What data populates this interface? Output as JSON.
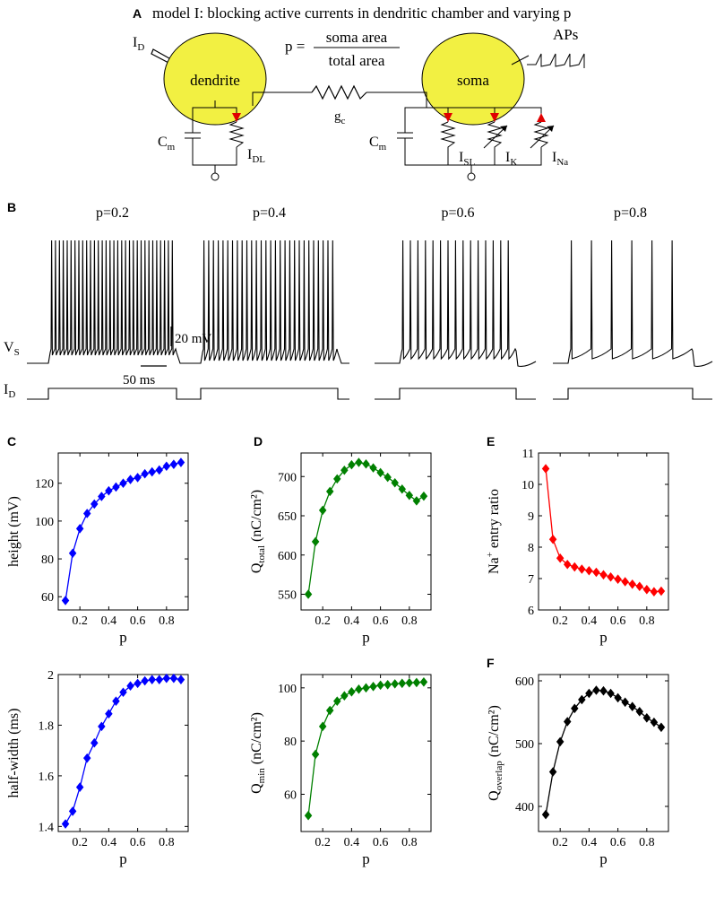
{
  "panels": {
    "A": {
      "letter": "A",
      "title": "model I: blocking active currents in dendritic chamber and varying p",
      "dendrite_label": "dendrite",
      "soma_label": "soma",
      "injection_label": "I",
      "injection_sub": "D",
      "p_lhs": "p =",
      "p_numerator": "soma area",
      "p_denominator": "total area",
      "aps_label": "APs",
      "gc_label": "g",
      "gc_sub": "c",
      "cm_label_d": "C",
      "cm_sub_d": "m",
      "cm_label_s": "C",
      "cm_sub_s": "m",
      "idl_label": "I",
      "idl_sub": "DL",
      "isl_label": "I",
      "isl_sub": "SL",
      "ik_label": "I",
      "ik_sub": "K",
      "ina_label": "I",
      "ina_sub": "Na"
    },
    "B": {
      "letter": "B",
      "traces": [
        {
          "label": "p=0.2",
          "n_spikes": 32
        },
        {
          "label": "p=0.4",
          "n_spikes": 28
        },
        {
          "label": "p=0.6",
          "n_spikes": 15
        },
        {
          "label": "p=0.8",
          "n_spikes": 6
        }
      ],
      "vs_label": "V",
      "vs_sub": "S",
      "id_label": "I",
      "id_sub": "D",
      "scale_v": "20 mV",
      "scale_t": "50 ms"
    }
  },
  "colors": {
    "blue": "#0000ff",
    "green": "#008000",
    "red": "#ff0000",
    "black": "#000000",
    "yellow": "#f2f042"
  },
  "chart_data": [
    {
      "id": "C_top",
      "letter": "C",
      "type": "line",
      "color": "#0000ff",
      "xlabel": "p",
      "ylabel": "height (mV)",
      "ylabel_sub": "",
      "ylabel_tail": "",
      "x": [
        0.1,
        0.15,
        0.2,
        0.25,
        0.3,
        0.35,
        0.4,
        0.45,
        0.5,
        0.55,
        0.6,
        0.65,
        0.7,
        0.75,
        0.8,
        0.85,
        0.9
      ],
      "values": [
        58,
        83,
        96,
        104,
        109,
        113,
        116,
        118,
        120,
        122,
        123,
        125,
        126,
        127,
        129,
        130,
        131
      ],
      "xlim": [
        0.05,
        0.95
      ],
      "ylim": [
        53,
        136
      ],
      "xticks": [
        0.2,
        0.4,
        0.6,
        0.8
      ],
      "xtick_labels": [
        "0.2",
        "0.4",
        "0.6",
        "0.8"
      ],
      "yticks": [
        60,
        80,
        100,
        120
      ],
      "ytick_labels": [
        "60",
        "80",
        "100",
        "120"
      ]
    },
    {
      "id": "D_top",
      "letter": "D",
      "type": "line",
      "color": "#008000",
      "xlabel": "p",
      "ylabel": "Q",
      "ylabel_sub": "total",
      "ylabel_tail": " (nC/cm²)",
      "x": [
        0.1,
        0.15,
        0.2,
        0.25,
        0.3,
        0.35,
        0.4,
        0.45,
        0.5,
        0.55,
        0.6,
        0.65,
        0.7,
        0.75,
        0.8,
        0.85,
        0.9
      ],
      "values": [
        550,
        617,
        657,
        681,
        697,
        708,
        715,
        718,
        716,
        711,
        705,
        699,
        692,
        684,
        676,
        669,
        675
      ],
      "xlim": [
        0.05,
        0.95
      ],
      "ylim": [
        530,
        730
      ],
      "xticks": [
        0.2,
        0.4,
        0.6,
        0.8
      ],
      "xtick_labels": [
        "0.2",
        "0.4",
        "0.6",
        "0.8"
      ],
      "yticks": [
        550,
        600,
        650,
        700
      ],
      "ytick_labels": [
        "550",
        "600",
        "650",
        "700"
      ]
    },
    {
      "id": "E_top",
      "letter": "E",
      "type": "line",
      "color": "#ff0000",
      "xlabel": "p",
      "ylabel": "Na",
      "ylabel_sup": "+",
      "ylabel_sub": "",
      "ylabel_tail": " entry ratio",
      "x": [
        0.1,
        0.15,
        0.2,
        0.25,
        0.3,
        0.35,
        0.4,
        0.45,
        0.5,
        0.55,
        0.6,
        0.65,
        0.7,
        0.75,
        0.8,
        0.85,
        0.9
      ],
      "values": [
        10.5,
        8.25,
        7.65,
        7.45,
        7.37,
        7.3,
        7.25,
        7.2,
        7.12,
        7.05,
        6.98,
        6.9,
        6.82,
        6.75,
        6.65,
        6.58,
        6.6
      ],
      "xlim": [
        0.05,
        0.95
      ],
      "ylim": [
        6.0,
        11.0
      ],
      "xticks": [
        0.2,
        0.4,
        0.6,
        0.8
      ],
      "xtick_labels": [
        "0.2",
        "0.4",
        "0.6",
        "0.8"
      ],
      "yticks": [
        6,
        7,
        8,
        9,
        10,
        11
      ],
      "ytick_labels": [
        "6",
        "7",
        "8",
        "9",
        "10",
        "11"
      ]
    },
    {
      "id": "C_bottom",
      "letter": "",
      "type": "line",
      "color": "#0000ff",
      "xlabel": "p",
      "ylabel": "half-width (ms)",
      "ylabel_sub": "",
      "ylabel_tail": "",
      "x": [
        0.1,
        0.15,
        0.2,
        0.25,
        0.3,
        0.35,
        0.4,
        0.45,
        0.5,
        0.55,
        0.6,
        0.65,
        0.7,
        0.75,
        0.8,
        0.85,
        0.9
      ],
      "values": [
        1.41,
        1.46,
        1.555,
        1.67,
        1.73,
        1.795,
        1.845,
        1.895,
        1.93,
        1.955,
        1.965,
        1.975,
        1.98,
        1.98,
        1.985,
        1.985,
        1.98
      ],
      "xlim": [
        0.05,
        0.95
      ],
      "ylim": [
        1.38,
        2.0
      ],
      "xticks": [
        0.2,
        0.4,
        0.6,
        0.8
      ],
      "xtick_labels": [
        "0.2",
        "0.4",
        "0.6",
        "0.8"
      ],
      "yticks": [
        1.4,
        1.6,
        1.8,
        2.0
      ],
      "ytick_labels": [
        "1.4",
        "1.6",
        "1.8",
        "2"
      ]
    },
    {
      "id": "D_bottom",
      "letter": "",
      "type": "line",
      "color": "#008000",
      "xlabel": "p",
      "ylabel": "Q",
      "ylabel_sub": "min",
      "ylabel_tail": " (nC/cm²)",
      "x": [
        0.1,
        0.15,
        0.2,
        0.25,
        0.3,
        0.35,
        0.4,
        0.45,
        0.5,
        0.55,
        0.6,
        0.65,
        0.7,
        0.75,
        0.8,
        0.85,
        0.9
      ],
      "values": [
        52,
        75,
        85.5,
        91.5,
        95,
        97,
        98.5,
        99.5,
        100,
        100.5,
        101,
        101.2,
        101.5,
        101.7,
        101.9,
        102,
        102.2
      ],
      "xlim": [
        0.05,
        0.95
      ],
      "ylim": [
        46,
        105
      ],
      "xticks": [
        0.2,
        0.4,
        0.6,
        0.8
      ],
      "xtick_labels": [
        "0.2",
        "0.4",
        "0.6",
        "0.8"
      ],
      "yticks": [
        60,
        80,
        100
      ],
      "ytick_labels": [
        "60",
        "80",
        "100"
      ]
    },
    {
      "id": "F_bottom",
      "letter": "F",
      "type": "line",
      "color": "#000000",
      "xlabel": "p",
      "ylabel": "Q",
      "ylabel_sub": "overlap",
      "ylabel_tail": " (nC/cm²)",
      "x": [
        0.1,
        0.15,
        0.2,
        0.25,
        0.3,
        0.35,
        0.4,
        0.45,
        0.5,
        0.55,
        0.6,
        0.65,
        0.7,
        0.75,
        0.8,
        0.85,
        0.9
      ],
      "values": [
        387,
        455,
        503,
        535,
        556,
        570,
        580,
        585,
        584,
        580,
        573,
        566,
        559,
        551,
        541,
        534,
        526
      ],
      "xlim": [
        0.05,
        0.95
      ],
      "ylim": [
        360,
        610
      ],
      "xticks": [
        0.2,
        0.4,
        0.6,
        0.8
      ],
      "xtick_labels": [
        "0.2",
        "0.4",
        "0.6",
        "0.8"
      ],
      "yticks": [
        400,
        500,
        600
      ],
      "ytick_labels": [
        "400",
        "500",
        "600"
      ]
    }
  ]
}
